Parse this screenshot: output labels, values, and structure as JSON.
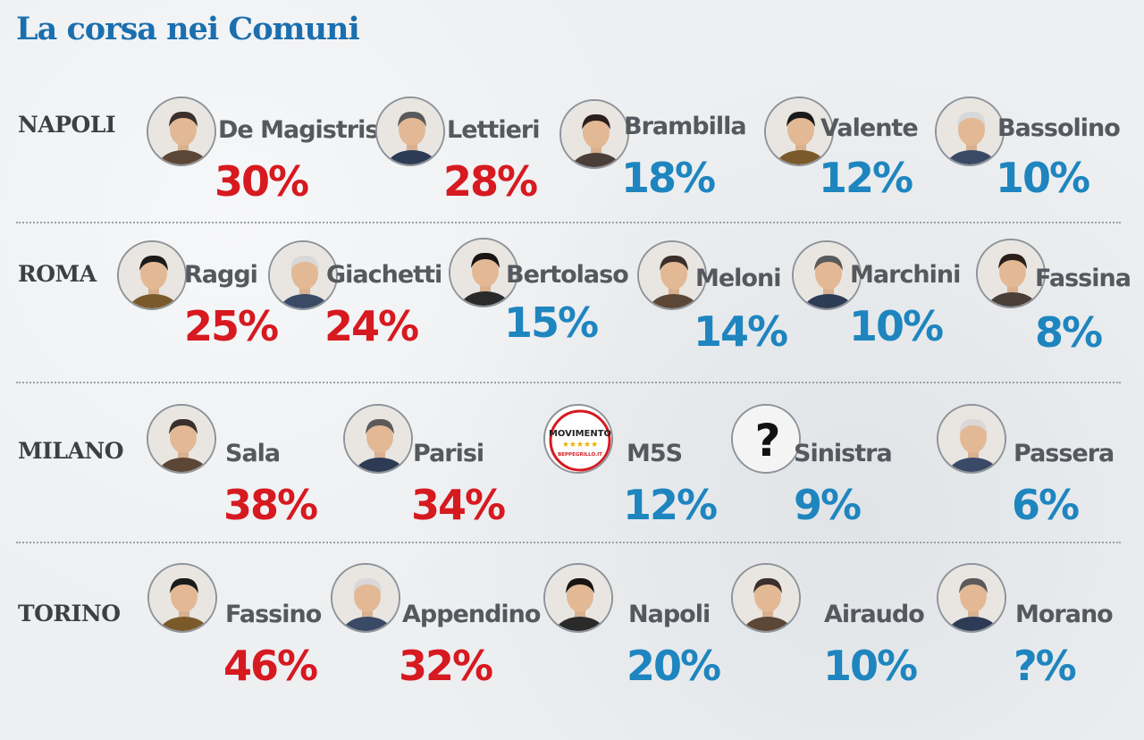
{
  "title": "La corsa nei Comuni",
  "colors": {
    "leading": "#d71920",
    "others": "#1e85bf",
    "title": "#1b6fae"
  },
  "chart_data": [
    {
      "type": "bar",
      "city": "NAPOLI",
      "categories": [
        "De Magistris",
        "Lettieri",
        "Brambilla",
        "Valente",
        "Bassolino"
      ],
      "values": [
        30,
        28,
        18,
        12,
        10
      ],
      "labels": [
        "30%",
        "28%",
        "18%",
        "12%",
        "10%"
      ],
      "highlight": [
        true,
        true,
        false,
        false,
        false
      ]
    },
    {
      "type": "bar",
      "city": "ROMA",
      "categories": [
        "Raggi",
        "Giachetti",
        "Bertolaso",
        "Meloni",
        "Marchini",
        "Fassina"
      ],
      "values": [
        25,
        24,
        15,
        14,
        10,
        8
      ],
      "labels": [
        "25%",
        "24%",
        "15%",
        "14%",
        "10%",
        "8%"
      ],
      "highlight": [
        true,
        true,
        false,
        false,
        false,
        false
      ]
    },
    {
      "type": "bar",
      "city": "MILANO",
      "categories": [
        "Sala",
        "Parisi",
        "M5S",
        "Sinistra",
        "Passera"
      ],
      "values": [
        38,
        34,
        12,
        9,
        6
      ],
      "labels": [
        "38%",
        "34%",
        "12%",
        "9%",
        "6%"
      ],
      "highlight": [
        true,
        true,
        false,
        false,
        false
      ],
      "logo_text": [
        "MOVIMENTO",
        "BEPPEGRILLO.IT"
      ],
      "unknown_mark": "?"
    },
    {
      "type": "bar",
      "city": "TORINO",
      "categories": [
        "Fassino",
        "Appendino",
        "Napoli",
        "Airaudo",
        "Morano"
      ],
      "values": [
        46,
        32,
        20,
        10,
        null
      ],
      "labels": [
        "46%",
        "32%",
        "20%",
        "10%",
        "?%"
      ],
      "highlight": [
        true,
        true,
        false,
        false,
        false
      ]
    }
  ]
}
